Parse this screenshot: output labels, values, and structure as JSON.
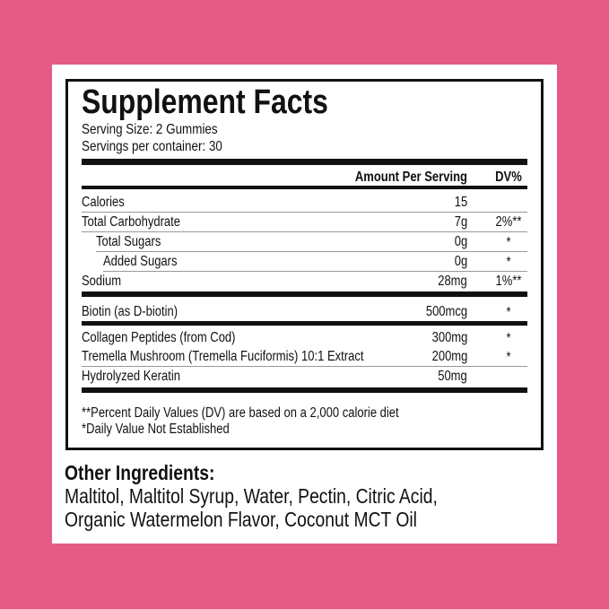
{
  "title": "Supplement Facts",
  "serving_size": "Serving Size: 2 Gummies",
  "servings_per_container": "Servings per container: 30",
  "columns": {
    "amount": "Amount Per Serving",
    "dv": "DV%"
  },
  "rows": [
    {
      "label": "Calories",
      "amount": "15",
      "dv": "",
      "indent": 0
    },
    {
      "label": "Total Carbohydrate",
      "amount": "7g",
      "dv": "2%**",
      "indent": 0
    },
    {
      "label": "Total Sugars",
      "amount": "0g",
      "dv": "*",
      "indent": 1
    },
    {
      "label": "Added Sugars",
      "amount": "0g",
      "dv": "*",
      "indent": 2
    },
    {
      "label": "Sodium",
      "amount": "28mg",
      "dv": "1%**",
      "indent": 0
    },
    {
      "label": "Biotin (as D-biotin)",
      "amount": "500mcg",
      "dv": "*",
      "indent": 0
    },
    {
      "label": "Collagen Peptides (from Cod)",
      "amount": "300mg",
      "dv": "*",
      "indent": 0
    },
    {
      "label": "Tremella Mushroom (Tremella Fuciformis) 10:1 Extract",
      "amount": "200mg",
      "dv": "*",
      "indent": 0
    },
    {
      "label": "Hydrolyzed Keratin",
      "amount": "50mg",
      "dv": "",
      "indent": 0
    }
  ],
  "footnotes": [
    "**Percent Daily Values (DV) are based on a 2,000 calorie diet",
    "*Daily Value Not Established"
  ],
  "other_ingredients": {
    "heading": "Other Ingredients:",
    "lines": [
      "Maltitol, Maltitol Syrup, Water, Pectin, Citric Acid,",
      "Organic Watermelon Flavor, Coconut MCT Oil"
    ]
  },
  "colors": {
    "background": "#e65a86",
    "panel": "#ffffff",
    "ink": "#111111"
  }
}
